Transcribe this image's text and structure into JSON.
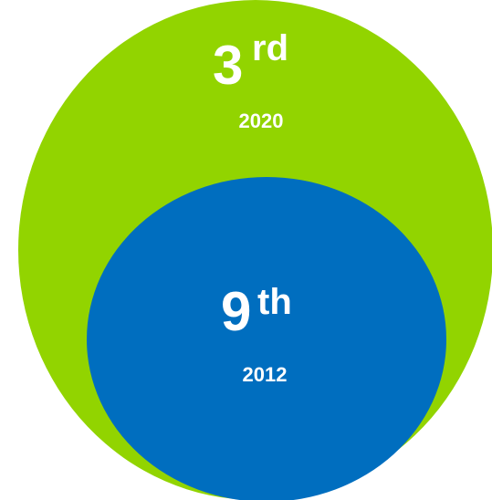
{
  "colors": {
    "outer": "#92d400",
    "inner": "#006ebf",
    "text": "#ffffff"
  },
  "outer": {
    "rank_number": "3",
    "rank_suffix": "rd",
    "year": "2020"
  },
  "inner": {
    "rank_number": "9",
    "rank_suffix": "th",
    "year": "2012"
  }
}
